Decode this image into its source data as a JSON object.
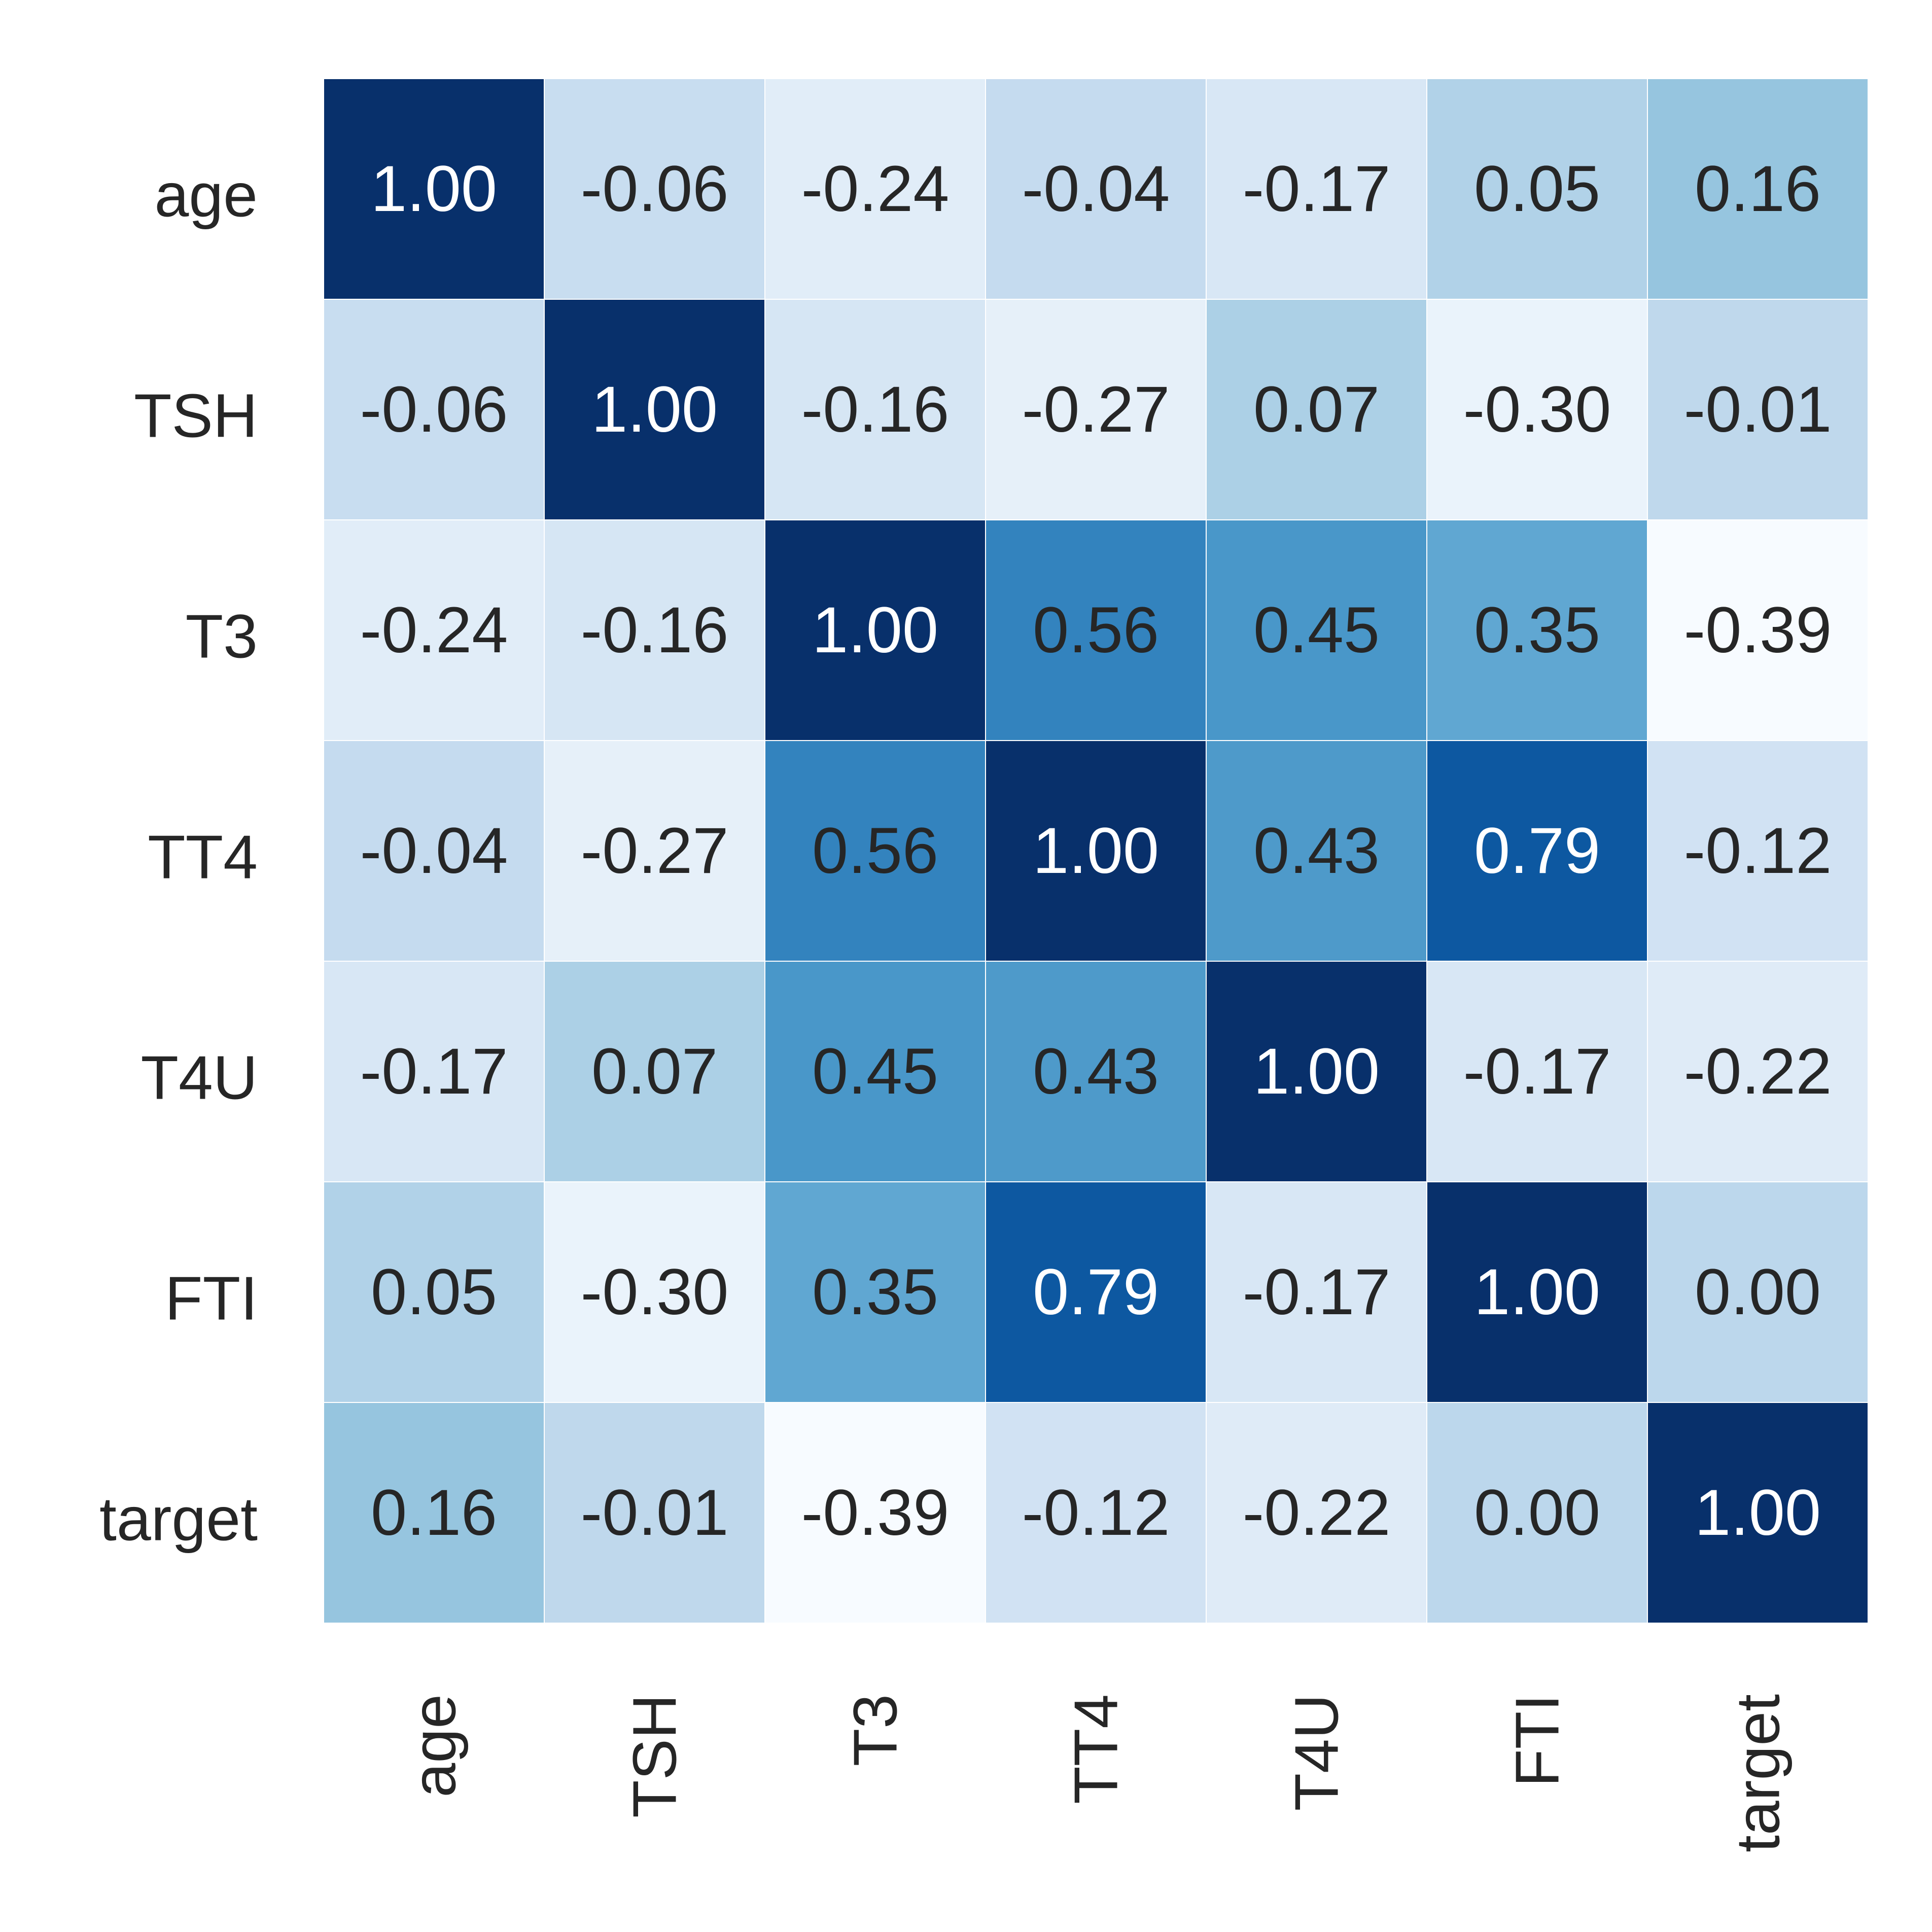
{
  "chart_data": {
    "type": "heatmap",
    "title": "",
    "xlabel": "",
    "ylabel": "",
    "x_labels": [
      "age",
      "TSH",
      "T3",
      "TT4",
      "T4U",
      "FTI",
      "target"
    ],
    "y_labels": [
      "age",
      "TSH",
      "T3",
      "TT4",
      "T4U",
      "FTI",
      "target"
    ],
    "values": [
      [
        1.0,
        -0.06,
        -0.24,
        -0.04,
        -0.17,
        0.05,
        0.16
      ],
      [
        -0.06,
        1.0,
        -0.16,
        -0.27,
        0.07,
        -0.3,
        -0.01
      ],
      [
        -0.24,
        -0.16,
        1.0,
        0.56,
        0.45,
        0.35,
        -0.39
      ],
      [
        -0.04,
        -0.27,
        0.56,
        1.0,
        0.43,
        0.79,
        -0.12
      ],
      [
        -0.17,
        0.07,
        0.45,
        0.43,
        1.0,
        -0.17,
        -0.22
      ],
      [
        0.05,
        -0.3,
        0.35,
        0.79,
        -0.17,
        1.0,
        0.0
      ],
      [
        0.16,
        -0.01,
        -0.39,
        -0.12,
        -0.22,
        0.0,
        1.0
      ]
    ],
    "value_format": "2 decimals",
    "colormap": "Blues",
    "vmin": -0.39,
    "vmax": 1.0,
    "colorbar": false,
    "grid_line_color": "#ffffff",
    "dark_text_color": "#262626",
    "light_text_color": "#ffffff"
  }
}
